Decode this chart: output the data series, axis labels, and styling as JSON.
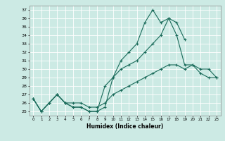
{
  "title": "",
  "xlabel": "Humidex (Indice chaleur)",
  "ylabel": "",
  "background_color": "#cceae4",
  "line_color": "#1a6b5a",
  "grid_color": "#ffffff",
  "x": [
    0,
    1,
    2,
    3,
    4,
    5,
    6,
    7,
    8,
    9,
    10,
    11,
    12,
    13,
    14,
    15,
    16,
    17,
    18,
    19,
    20,
    21,
    22,
    23
  ],
  "series1": [
    26.5,
    25.0,
    26.0,
    27.0,
    26.0,
    25.5,
    25.5,
    25.0,
    25.0,
    25.5,
    29.0,
    31.0,
    32.0,
    33.0,
    35.5,
    37.0,
    35.5,
    36.0,
    35.5,
    33.5,
    null,
    null,
    null,
    null
  ],
  "series2": [
    26.5,
    25.0,
    26.0,
    27.0,
    26.0,
    25.5,
    25.5,
    25.0,
    25.0,
    28.0,
    29.0,
    30.0,
    30.5,
    31.0,
    32.0,
    33.0,
    34.0,
    36.0,
    34.0,
    30.5,
    30.5,
    30.0,
    30.0,
    29.0
  ],
  "series3": [
    26.5,
    25.0,
    26.0,
    27.0,
    26.0,
    26.0,
    26.0,
    25.5,
    25.5,
    26.0,
    27.0,
    27.5,
    28.0,
    28.5,
    29.0,
    29.5,
    30.0,
    30.5,
    30.5,
    30.0,
    30.5,
    29.5,
    29.0,
    29.0
  ],
  "ylim": [
    24.5,
    37.5
  ],
  "xlim": [
    -0.5,
    23.5
  ],
  "yticks": [
    25,
    26,
    27,
    28,
    29,
    30,
    31,
    32,
    33,
    34,
    35,
    36,
    37
  ],
  "xticks": [
    0,
    1,
    2,
    3,
    4,
    5,
    6,
    7,
    8,
    9,
    10,
    11,
    12,
    13,
    14,
    15,
    16,
    17,
    18,
    19,
    20,
    21,
    22,
    23
  ]
}
